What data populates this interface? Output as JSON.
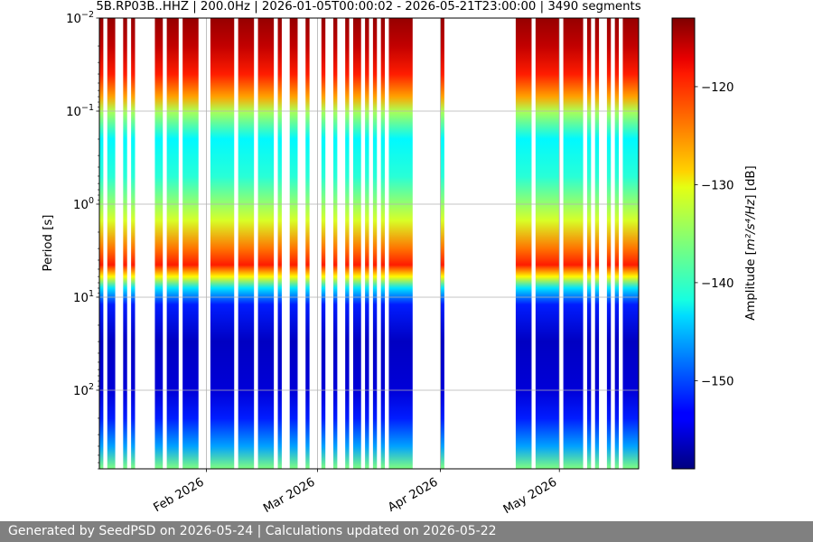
{
  "chart_data": {
    "type": "heatmap",
    "title": "5B.RP03B..HHZ | 200.0Hz | 2026-01-05T00:00:02 - 2026-05-21T23:00:00 | 3490 segments",
    "xlabel": "",
    "ylabel": "Period [s]",
    "x_range": [
      "2026-01-05",
      "2026-05-21"
    ],
    "x_ticks": [
      "Feb 2026",
      "Mar 2026",
      "Apr 2026",
      "May 2026"
    ],
    "x_tick_dates": [
      "2026-02-01",
      "2026-03-01",
      "2026-04-01",
      "2026-05-01"
    ],
    "y_scale": "log",
    "y_inverted": true,
    "y_range": [
      0.01,
      700
    ],
    "y_ticks": [
      {
        "base": "10",
        "exp": "−2",
        "value": 0.01
      },
      {
        "base": "10",
        "exp": "−1",
        "value": 0.1
      },
      {
        "base": "10",
        "exp": "0",
        "value": 1
      },
      {
        "base": "10",
        "exp": "1",
        "value": 10
      },
      {
        "base": "10",
        "exp": "2",
        "value": 100
      }
    ],
    "grid": true,
    "colormap": "jet",
    "colorbar": {
      "label_prefix": "Amplitude [",
      "label_unit": "m²/s⁴/Hz",
      "label_suffix": "] [dB]",
      "range": [
        -159,
        -113
      ],
      "ticks": [
        -120,
        -130,
        -140,
        -150
      ]
    },
    "data_coverage": [
      [
        "2026-01-05",
        "2026-01-06"
      ],
      [
        "2026-01-07",
        "2026-01-09"
      ],
      [
        "2026-01-11",
        "2026-01-12"
      ],
      [
        "2026-01-13",
        "2026-01-14"
      ],
      [
        "2026-01-19",
        "2026-01-21"
      ],
      [
        "2026-01-22",
        "2026-01-25"
      ],
      [
        "2026-01-26",
        "2026-01-30"
      ],
      [
        "2026-02-02",
        "2026-02-08"
      ],
      [
        "2026-02-09",
        "2026-02-13"
      ],
      [
        "2026-02-14",
        "2026-02-18"
      ],
      [
        "2026-02-19",
        "2026-02-20"
      ],
      [
        "2026-02-22",
        "2026-02-24"
      ],
      [
        "2026-02-26",
        "2026-02-27"
      ],
      [
        "2026-03-02",
        "2026-03-03"
      ],
      [
        "2026-03-05",
        "2026-03-06"
      ],
      [
        "2026-03-08",
        "2026-03-09"
      ],
      [
        "2026-03-10",
        "2026-03-12"
      ],
      [
        "2026-03-13",
        "2026-03-14"
      ],
      [
        "2026-03-15",
        "2026-03-16"
      ],
      [
        "2026-03-17",
        "2026-03-18"
      ],
      [
        "2026-03-19",
        "2026-03-25"
      ],
      [
        "2026-04-01",
        "2026-04-02"
      ],
      [
        "2026-04-20",
        "2026-04-24"
      ],
      [
        "2026-04-25",
        "2026-05-01"
      ],
      [
        "2026-05-02",
        "2026-05-07"
      ],
      [
        "2026-05-08",
        "2026-05-09"
      ],
      [
        "2026-05-10",
        "2026-05-11"
      ],
      [
        "2026-05-13",
        "2026-05-14"
      ],
      [
        "2026-05-15",
        "2026-05-16"
      ],
      [
        "2026-05-17",
        "2026-05-21"
      ]
    ],
    "amplitude_profile": [
      {
        "period": 0.01,
        "db": -114
      },
      {
        "period": 0.02,
        "db": -116
      },
      {
        "period": 0.04,
        "db": -120
      },
      {
        "period": 0.07,
        "db": -126
      },
      {
        "period": 0.1,
        "db": -134
      },
      {
        "period": 0.2,
        "db": -142
      },
      {
        "period": 0.5,
        "db": -140
      },
      {
        "period": 1.5,
        "db": -132
      },
      {
        "period": 3,
        "db": -124
      },
      {
        "period": 4.5,
        "db": -120
      },
      {
        "period": 6,
        "db": -130
      },
      {
        "period": 8,
        "db": -143
      },
      {
        "period": 12,
        "db": -152
      },
      {
        "period": 30,
        "db": -156
      },
      {
        "period": 100,
        "db": -155
      },
      {
        "period": 200,
        "db": -152
      },
      {
        "period": 400,
        "db": -146
      },
      {
        "period": 700,
        "db": -136
      }
    ]
  },
  "footer": {
    "text": "Generated by SeedPSD on 2026-05-24 | Calculations updated on 2026-05-22"
  }
}
